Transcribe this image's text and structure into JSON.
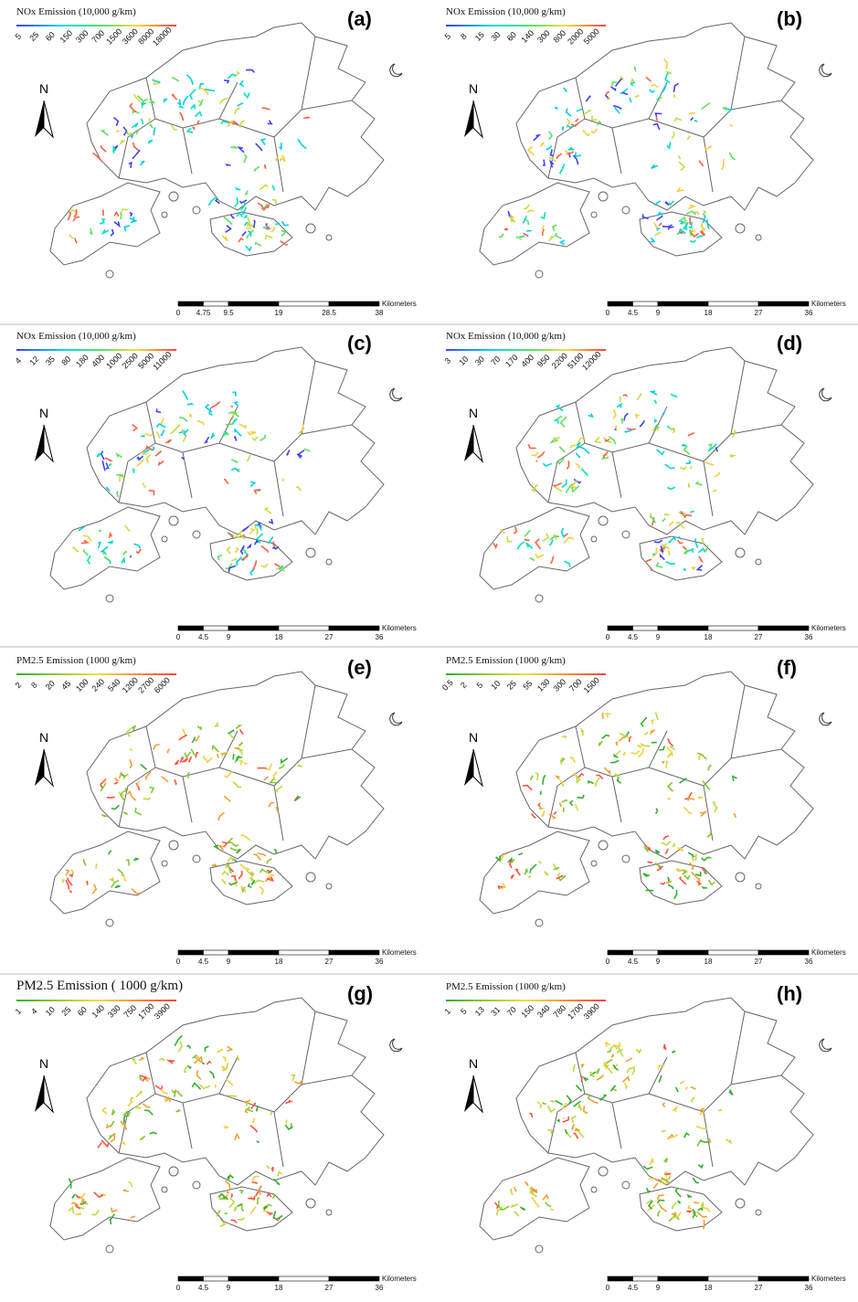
{
  "panels": [
    {
      "legend_title": "NOx Emission (10,000 g/km)",
      "legend_labels": [
        "5",
        "25",
        "60",
        "150",
        "300",
        "700",
        "1500",
        "3600",
        "8000",
        "18000"
      ],
      "label": "(a)",
      "north": "N",
      "scale_labels": [
        "0",
        "4.75",
        "9.5",
        "19",
        "28.5",
        "38"
      ],
      "scale_unit": "Kilometers"
    },
    {
      "legend_title": "NOx Emission (10,000 g/km)",
      "legend_labels": [
        "5",
        "8",
        "15",
        "30",
        "60",
        "140",
        "300",
        "800",
        "2000",
        "5000"
      ],
      "label": "(b)",
      "north": "N",
      "scale_labels": [
        "0",
        "4.5",
        "9",
        "18",
        "27",
        "36"
      ],
      "scale_unit": "Kilometers"
    },
    {
      "legend_title": "NOx Emission (10,000 g/km)",
      "legend_labels": [
        "4",
        "12",
        "35",
        "80",
        "180",
        "400",
        "1000",
        "2500",
        "5000",
        "11000"
      ],
      "label": "(c)",
      "north": "N",
      "scale_labels": [
        "0",
        "4.5",
        "9",
        "18",
        "27",
        "36"
      ],
      "scale_unit": "Kilometers"
    },
    {
      "legend_title": "NOx Emission (10,000 g/km)",
      "legend_labels": [
        "3",
        "10",
        "30",
        "70",
        "170",
        "400",
        "950",
        "2200",
        "5100",
        "12000"
      ],
      "label": "(d)",
      "north": "N",
      "scale_labels": [
        "0",
        "4.5",
        "9",
        "18",
        "27",
        "36"
      ],
      "scale_unit": "Kilometers"
    },
    {
      "legend_title": "PM2.5 Emission (1000 g/km)",
      "legend_labels": [
        "2",
        "8",
        "20",
        "45",
        "100",
        "240",
        "540",
        "1200",
        "2700",
        "6000"
      ],
      "label": "(e)",
      "north": "N",
      "scale_labels": [
        "0",
        "4.5",
        "9",
        "18",
        "27",
        "36"
      ],
      "scale_unit": "Kilometers"
    },
    {
      "legend_title": "PM2.5 Emission (1000 g/km)",
      "legend_labels": [
        "0.5",
        "2",
        "5",
        "10",
        "25",
        "55",
        "130",
        "300",
        "700",
        "1500"
      ],
      "label": "(f)",
      "north": "N",
      "scale_labels": [
        "0",
        "4.5",
        "9",
        "18",
        "27",
        "36"
      ],
      "scale_unit": "Kilometers"
    },
    {
      "legend_title": "PM2.5 Emission ( 1000 g/km)",
      "legend_labels": [
        "1",
        "4",
        "10",
        "25",
        "60",
        "140",
        "330",
        "750",
        "1700",
        "3900"
      ],
      "label": "(g)",
      "north": "N",
      "scale_labels": [
        "0",
        "4.5",
        "9",
        "18",
        "27",
        "36"
      ],
      "scale_unit": "Kilometers"
    },
    {
      "legend_title": "PM2.5 Emission (1000 g/km)",
      "legend_labels": [
        "1",
        "5",
        "13",
        "31",
        "70",
        "150",
        "340",
        "780",
        "1700",
        "3900"
      ],
      "label": "(h)",
      "north": "N",
      "scale_labels": [
        "0",
        "4.5",
        "9",
        "18",
        "27",
        "36"
      ],
      "scale_unit": "Kilometers"
    }
  ]
}
